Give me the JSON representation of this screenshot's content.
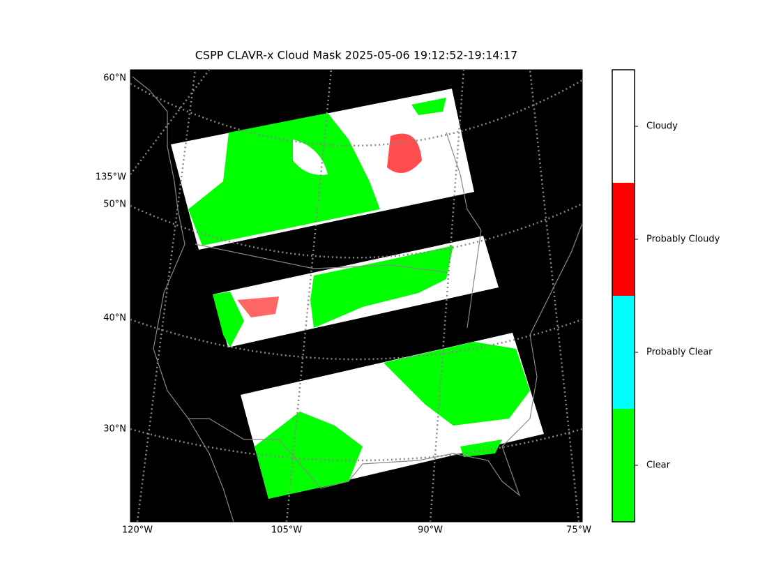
{
  "title": "CSPP CLAVR-x Cloud Mask 2025-05-06 19:12:52-19:14:17",
  "lat_labels": [
    "60°N",
    "50°N",
    "40°N",
    "30°N"
  ],
  "lon_label_left": "135°W",
  "lon_labels_bottom": [
    "120°W",
    "105°W",
    "90°W",
    "75°W"
  ],
  "colorbar": {
    "categories": [
      "Clear",
      "Probably Clear",
      "Probably Cloudy",
      "Cloudy"
    ],
    "colors": [
      "#00ff00",
      "#00ffff",
      "#ff0000",
      "#ffffff"
    ]
  }
}
